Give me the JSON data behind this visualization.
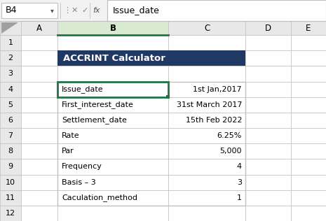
{
  "title": "ACCRINT Calculator",
  "title_bg": "#1F3864",
  "title_color": "#FFFFFF",
  "formula_bar_cell": "B4",
  "formula_bar_content": "Issue_date",
  "row_headers": [
    "1",
    "2",
    "3",
    "4",
    "5",
    "6",
    "7",
    "8",
    "9",
    "10",
    "11",
    "12"
  ],
  "col_headers": [
    "A",
    "B",
    "C",
    "D",
    "E"
  ],
  "table_rows": [
    [
      "Issue_date",
      "1st Jan,2017"
    ],
    [
      "First_interest_date",
      "31st March 2017"
    ],
    [
      "Settlement_date",
      "15th Feb 2022"
    ],
    [
      "Rate",
      "6.25%"
    ],
    [
      "Par",
      "5,000"
    ],
    [
      "Frequency",
      "4"
    ],
    [
      "Basis – 3",
      "3"
    ],
    [
      "Caculation_method",
      "1"
    ]
  ],
  "bg_color": "#F2F2F2",
  "header_bg": "#E8E8E8",
  "selected_col_bg": "#D9EAD3",
  "selected_col_border": "#217346",
  "grid_color": "#C0C0C0",
  "selected_cell_border": "#217346",
  "white": "#FFFFFF",
  "formula_bar_bg": "#F2F2F2",
  "text_dark": "#000000",
  "text_gray": "#666666"
}
